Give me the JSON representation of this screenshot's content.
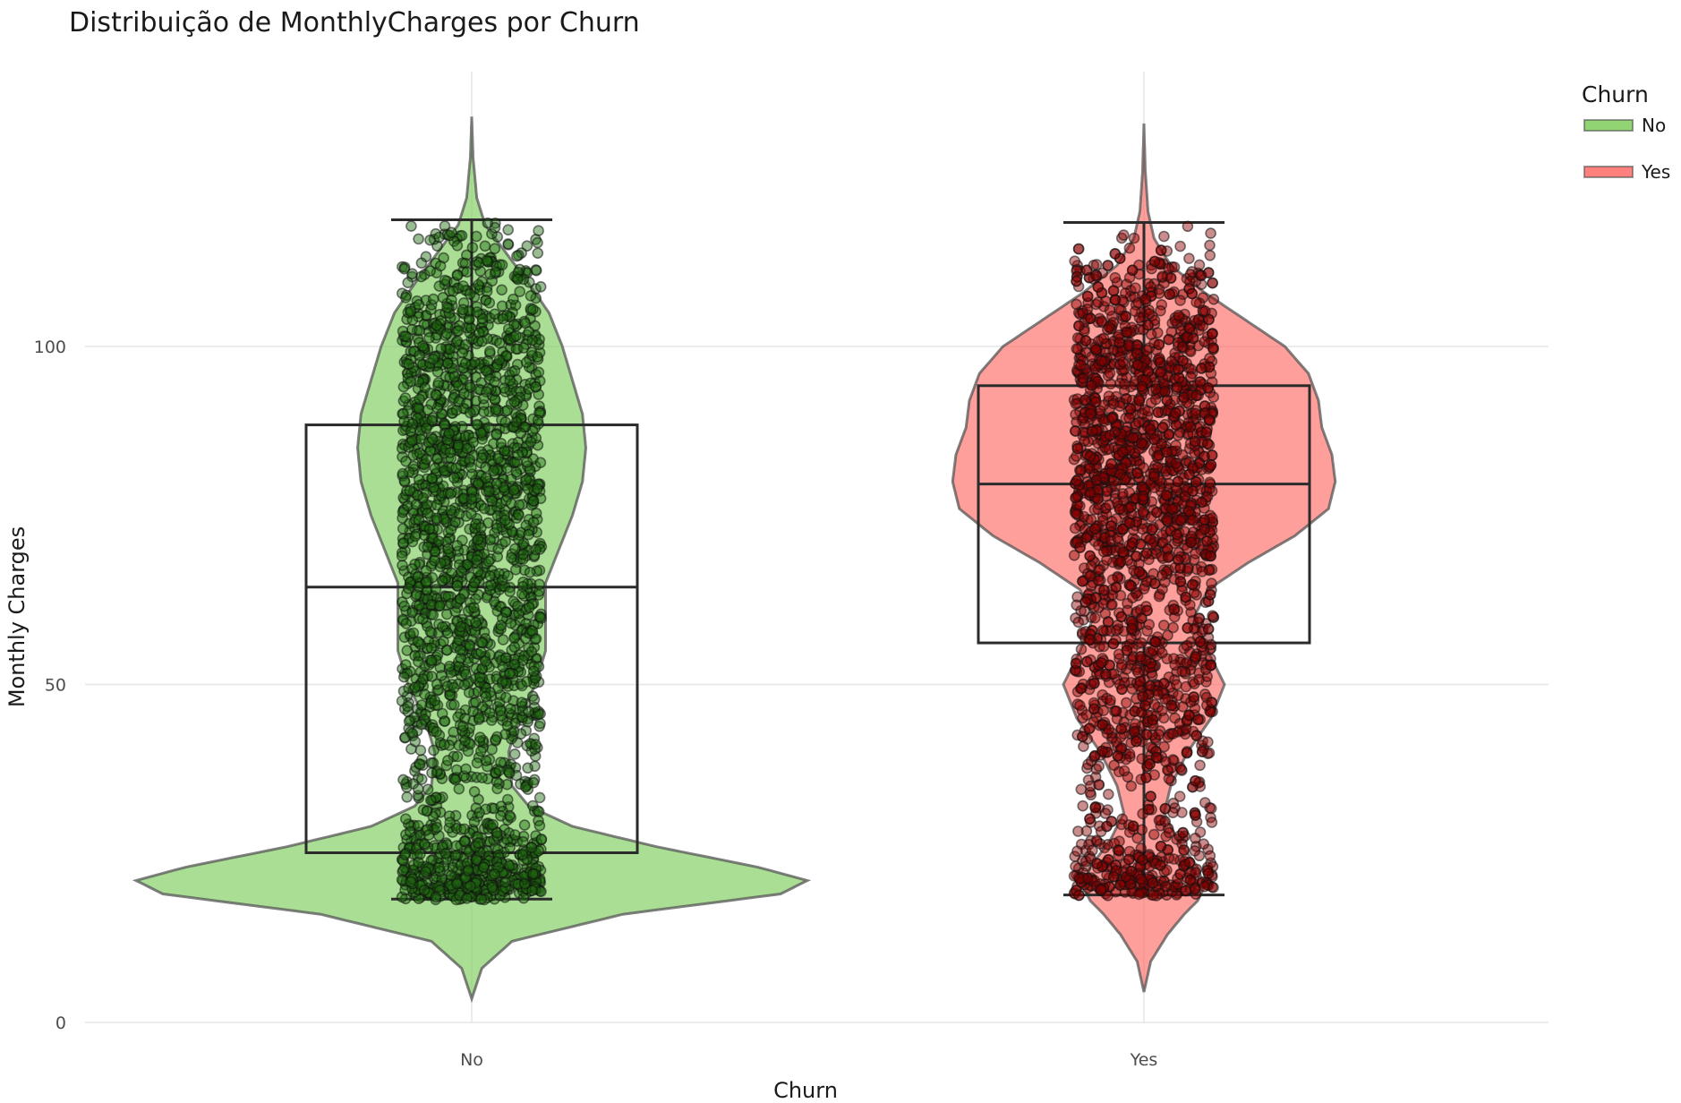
{
  "chart_data": {
    "type": "violin",
    "title": "Distribuição de MonthlyCharges por Churn",
    "xlabel": "Churn",
    "ylabel": "Monthly Charges",
    "categories": [
      "No",
      "Yes"
    ],
    "ylim": [
      -1,
      134
    ],
    "yticks": [
      0,
      50,
      100
    ],
    "grid": true,
    "legend": {
      "title": "Churn",
      "position": "right",
      "entries": [
        "No",
        "Yes"
      ]
    },
    "series": [
      {
        "name": "No",
        "color": "#7ccd5a",
        "point_color": "#1e6b0f",
        "min": 18.25,
        "q1": 25.1,
        "median": 64.4,
        "q3": 88.4,
        "max": 118.75,
        "density": [
          [
            3.5,
            0.0
          ],
          [
            8,
            0.03
          ],
          [
            12,
            0.12
          ],
          [
            16,
            0.45
          ],
          [
            19,
            0.92
          ],
          [
            21,
            1.0
          ],
          [
            23,
            0.85
          ],
          [
            26,
            0.55
          ],
          [
            29,
            0.3
          ],
          [
            32,
            0.17
          ],
          [
            35,
            0.12
          ],
          [
            40,
            0.11
          ],
          [
            45,
            0.14
          ],
          [
            50,
            0.19
          ],
          [
            55,
            0.22
          ],
          [
            60,
            0.22
          ],
          [
            65,
            0.22
          ],
          [
            70,
            0.26
          ],
          [
            75,
            0.3
          ],
          [
            80,
            0.33
          ],
          [
            85,
            0.34
          ],
          [
            90,
            0.33
          ],
          [
            95,
            0.3
          ],
          [
            100,
            0.27
          ],
          [
            105,
            0.23
          ],
          [
            110,
            0.16
          ],
          [
            114,
            0.1
          ],
          [
            118,
            0.04
          ],
          [
            122,
            0.015
          ],
          [
            128,
            0.004
          ],
          [
            134,
            0.0
          ]
        ],
        "point_levels": [
          [
            20,
            1.8
          ],
          [
            25,
            1.2
          ],
          [
            30,
            0.45
          ],
          [
            35,
            0.55
          ],
          [
            40,
            0.45
          ],
          [
            45,
            0.75
          ],
          [
            50,
            0.75
          ],
          [
            55,
            0.8
          ],
          [
            60,
            0.8
          ],
          [
            65,
            0.85
          ],
          [
            70,
            0.9
          ],
          [
            75,
            0.9
          ],
          [
            80,
            1.0
          ],
          [
            85,
            0.9
          ],
          [
            90,
            0.9
          ],
          [
            95,
            0.85
          ],
          [
            100,
            0.85
          ],
          [
            105,
            0.7
          ],
          [
            110,
            0.5
          ],
          [
            115,
            0.35
          ],
          [
            118,
            0.1
          ]
        ]
      },
      {
        "name": "Yes",
        "color": "#ff6b66",
        "point_color": "#8b0000",
        "min": 18.85,
        "q1": 56.15,
        "median": 79.65,
        "q3": 94.2,
        "max": 118.35,
        "density": [
          [
            4.5,
            0.0
          ],
          [
            9,
            0.02
          ],
          [
            13,
            0.07
          ],
          [
            16,
            0.12
          ],
          [
            18,
            0.16
          ],
          [
            20,
            0.18
          ],
          [
            23,
            0.16
          ],
          [
            27,
            0.1
          ],
          [
            31,
            0.06
          ],
          [
            35,
            0.08
          ],
          [
            40,
            0.13
          ],
          [
            45,
            0.2
          ],
          [
            50,
            0.24
          ],
          [
            55,
            0.19
          ],
          [
            60,
            0.15
          ],
          [
            64,
            0.19
          ],
          [
            68,
            0.31
          ],
          [
            72,
            0.45
          ],
          [
            76,
            0.55
          ],
          [
            80,
            0.57
          ],
          [
            84,
            0.56
          ],
          [
            88,
            0.53
          ],
          [
            92,
            0.52
          ],
          [
            96,
            0.49
          ],
          [
            100,
            0.42
          ],
          [
            104,
            0.3
          ],
          [
            108,
            0.18
          ],
          [
            112,
            0.08
          ],
          [
            116,
            0.03
          ],
          [
            120,
            0.012
          ],
          [
            126,
            0.004
          ],
          [
            133,
            0.0
          ]
        ],
        "point_levels": [
          [
            20,
            1.0
          ],
          [
            25,
            0.5
          ],
          [
            30,
            0.22
          ],
          [
            35,
            0.3
          ],
          [
            40,
            0.35
          ],
          [
            45,
            0.55
          ],
          [
            50,
            0.55
          ],
          [
            55,
            0.5
          ],
          [
            60,
            0.35
          ],
          [
            65,
            0.45
          ],
          [
            70,
            0.8
          ],
          [
            75,
            0.9
          ],
          [
            80,
            1.0
          ],
          [
            85,
            1.0
          ],
          [
            90,
            0.95
          ],
          [
            95,
            0.9
          ],
          [
            100,
            0.8
          ],
          [
            105,
            0.6
          ],
          [
            110,
            0.35
          ],
          [
            115,
            0.12
          ],
          [
            118,
            0.05
          ]
        ]
      }
    ]
  }
}
